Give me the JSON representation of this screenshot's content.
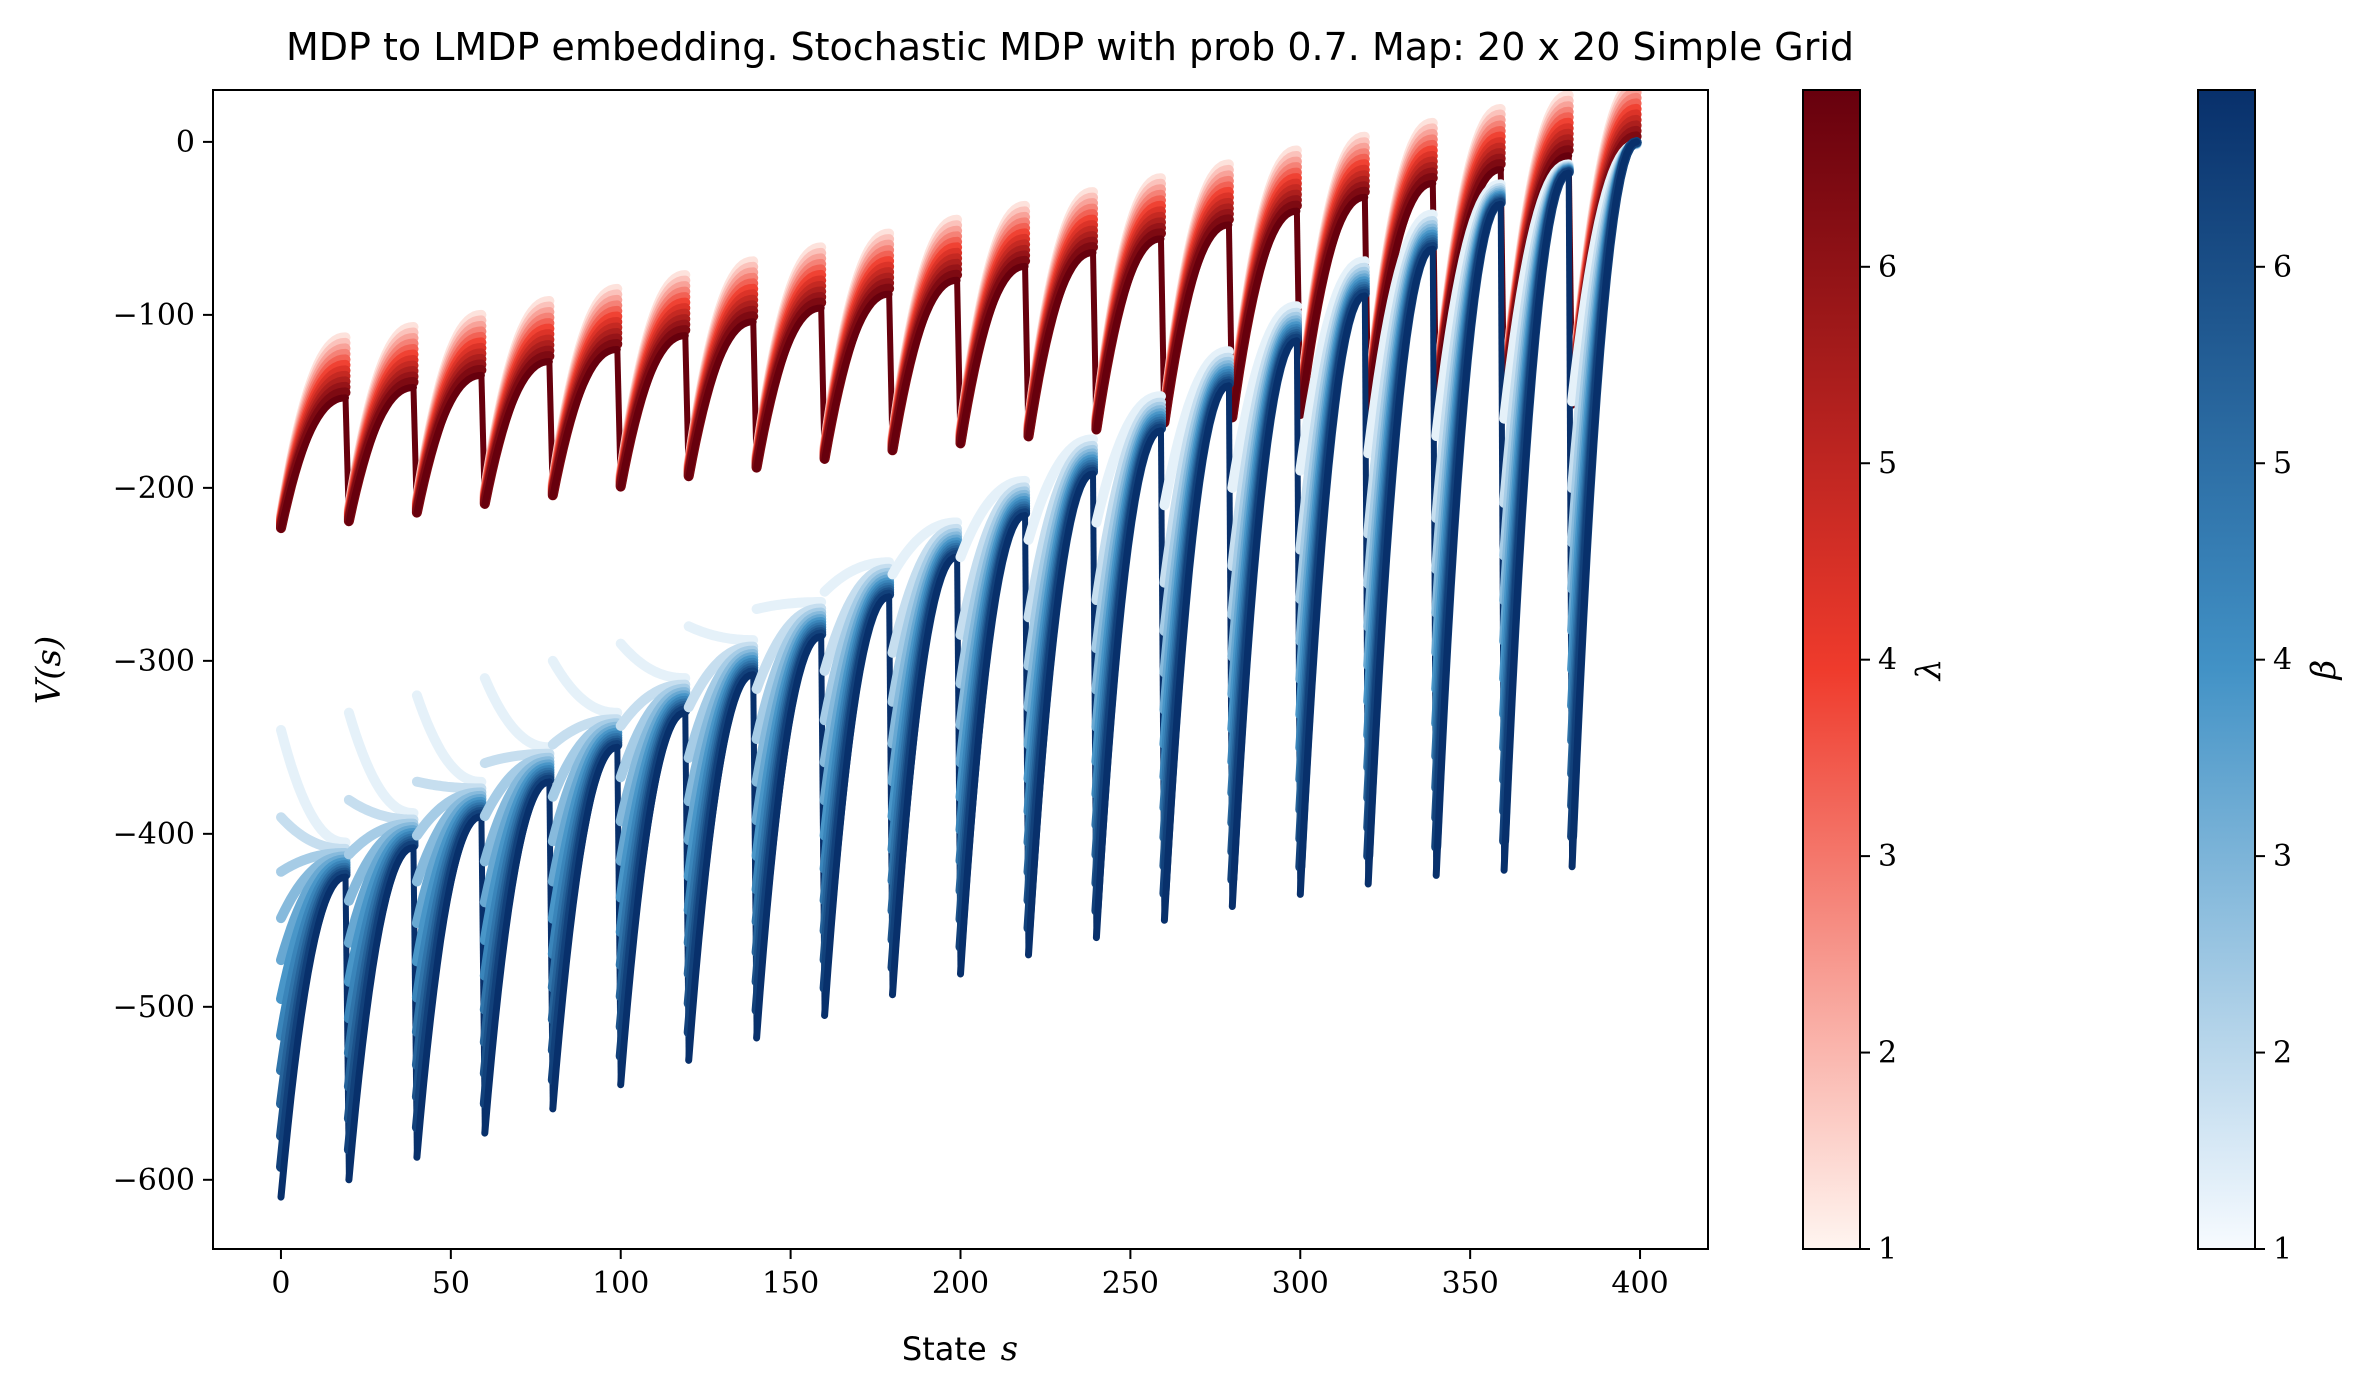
{
  "chart_data": {
    "type": "line",
    "title": "MDP to LMDP embedding. Stochastic MDP with prob 0.7. Map: 20 x 20 Simple Grid",
    "xlabel": "State",
    "xlabel_math": "s",
    "ylabel": "V(s)",
    "xlim": [
      -20,
      420
    ],
    "ylim": [
      -640,
      30
    ],
    "xticks": [
      "0",
      "50",
      "100",
      "150",
      "200",
      "250",
      "300",
      "350",
      "400"
    ],
    "yticks": [
      "0",
      "−100",
      "−200",
      "−300",
      "−400",
      "−500",
      "−600"
    ],
    "grid": false,
    "n_states": 400,
    "row_length": 20,
    "segment_starts": [
      0,
      20,
      40,
      60,
      80,
      100,
      120,
      140,
      160,
      180,
      200,
      220,
      240,
      260,
      280,
      300,
      320,
      340,
      360,
      380
    ],
    "series": [
      {
        "family": "LMDP (lambda)",
        "colormap": "Reds",
        "curve_max_param": [
          {
            "segment_start": 0,
            "start": -224,
            "end": -148
          },
          {
            "segment_start": 20,
            "start": -220,
            "end": -142
          },
          {
            "segment_start": 40,
            "start": -215,
            "end": -135
          },
          {
            "segment_start": 60,
            "start": -210,
            "end": -127
          },
          {
            "segment_start": 80,
            "start": -205,
            "end": -120
          },
          {
            "segment_start": 100,
            "start": -200,
            "end": -112
          },
          {
            "segment_start": 120,
            "start": -194,
            "end": -104
          },
          {
            "segment_start": 140,
            "start": -189,
            "end": -96
          },
          {
            "segment_start": 160,
            "start": -184,
            "end": -88
          },
          {
            "segment_start": 180,
            "start": -179,
            "end": -80
          },
          {
            "segment_start": 200,
            "start": -175,
            "end": -72
          },
          {
            "segment_start": 220,
            "start": -171,
            "end": -64
          },
          {
            "segment_start": 240,
            "start": -167,
            "end": -56
          },
          {
            "segment_start": 260,
            "start": -163,
            "end": -48
          },
          {
            "segment_start": 280,
            "start": -160,
            "end": -40
          },
          {
            "segment_start": 300,
            "start": -158,
            "end": -32
          },
          {
            "segment_start": 320,
            "start": -156,
            "end": -24
          },
          {
            "segment_start": 340,
            "start": -154,
            "end": -16
          },
          {
            "segment_start": 360,
            "start": -153,
            "end": -8
          },
          {
            "segment_start": 380,
            "start": -152,
            "end": 0
          }
        ],
        "curve_min_param_end_offset": 35
      },
      {
        "family": "MDP (beta)",
        "colormap": "Blues",
        "curve_max_param": [
          {
            "segment_start": 0,
            "start": -610,
            "end": -425
          },
          {
            "segment_start": 20,
            "start": -600,
            "end": -408
          },
          {
            "segment_start": 40,
            "start": -587,
            "end": -390
          },
          {
            "segment_start": 60,
            "start": -573,
            "end": -370
          },
          {
            "segment_start": 80,
            "start": -559,
            "end": -350
          },
          {
            "segment_start": 100,
            "start": -545,
            "end": -330
          },
          {
            "segment_start": 120,
            "start": -531,
            "end": -308
          },
          {
            "segment_start": 140,
            "start": -518,
            "end": -286
          },
          {
            "segment_start": 160,
            "start": -505,
            "end": -263
          },
          {
            "segment_start": 180,
            "start": -493,
            "end": -240
          },
          {
            "segment_start": 200,
            "start": -481,
            "end": -216
          },
          {
            "segment_start": 220,
            "start": -470,
            "end": -192
          },
          {
            "segment_start": 240,
            "start": -460,
            "end": -167
          },
          {
            "segment_start": 260,
            "start": -450,
            "end": -141
          },
          {
            "segment_start": 280,
            "start": -442,
            "end": -115
          },
          {
            "segment_start": 300,
            "start": -435,
            "end": -89
          },
          {
            "segment_start": 320,
            "start": -429,
            "end": -62
          },
          {
            "segment_start": 340,
            "start": -424,
            "end": -36
          },
          {
            "segment_start": 360,
            "start": -421,
            "end": -18
          },
          {
            "segment_start": 380,
            "start": -419,
            "end": 0
          }
        ],
        "curve_min_param_start": -340,
        "curve_min_param_end": -220
      }
    ],
    "colorbars": [
      {
        "label": "λ",
        "colormap": "Reds",
        "range": [
          1,
          6.9
        ],
        "ticks": [
          "1",
          "2",
          "3",
          "4",
          "5",
          "6"
        ]
      },
      {
        "label": "β",
        "colormap": "Blues",
        "range": [
          1,
          6.9
        ],
        "ticks": [
          "1",
          "2",
          "3",
          "4",
          "5",
          "6"
        ]
      }
    ],
    "colors": {
      "reds_dark": "#67000d",
      "reds_mid": "#ef3b2c",
      "reds_light": "#fff5f0",
      "blues_dark": "#08306b",
      "blues_mid": "#4292c6",
      "blues_light": "#f7fbff"
    }
  }
}
